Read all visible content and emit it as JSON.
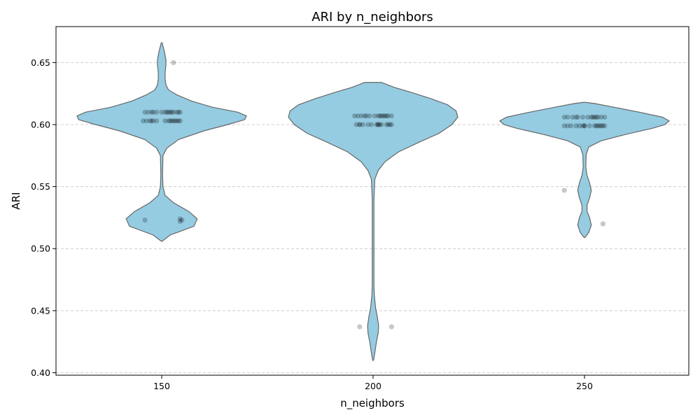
{
  "chart_data": {
    "type": "violin",
    "title": "ARI by n_neighbors",
    "xlabel": "n_neighbors",
    "ylabel": "ARI",
    "categories": [
      "150",
      "200",
      "250"
    ],
    "ylim": [
      0.398,
      0.679
    ],
    "yticks": [
      0.4,
      0.45,
      0.5,
      0.55,
      0.6,
      0.65
    ],
    "grid": "y-dashed",
    "colors": {
      "violin": "#89c6df",
      "edge": "#666666",
      "points": "#000000"
    },
    "groups": [
      {
        "category": "150",
        "profile": [
          [
            0.506,
            0.0
          ],
          [
            0.511,
            0.1
          ],
          [
            0.518,
            0.38
          ],
          [
            0.524,
            0.42
          ],
          [
            0.53,
            0.32
          ],
          [
            0.537,
            0.14
          ],
          [
            0.543,
            0.04
          ],
          [
            0.55,
            0.015
          ],
          [
            0.56,
            0.01
          ],
          [
            0.575,
            0.015
          ],
          [
            0.581,
            0.06
          ],
          [
            0.588,
            0.2
          ],
          [
            0.595,
            0.5
          ],
          [
            0.6,
            0.78
          ],
          [
            0.604,
            0.98
          ],
          [
            0.607,
            1.0
          ],
          [
            0.61,
            0.9
          ],
          [
            0.614,
            0.6
          ],
          [
            0.619,
            0.35
          ],
          [
            0.624,
            0.18
          ],
          [
            0.628,
            0.08
          ],
          [
            0.632,
            0.05
          ],
          [
            0.637,
            0.04
          ],
          [
            0.642,
            0.04
          ],
          [
            0.648,
            0.05
          ],
          [
            0.652,
            0.05
          ],
          [
            0.658,
            0.035
          ],
          [
            0.662,
            0.02
          ],
          [
            0.666,
            0.0
          ]
        ],
        "points": [
          [
            -0.1,
            0.61
          ],
          [
            -0.08,
            0.61
          ],
          [
            -0.06,
            0.61
          ],
          [
            -0.03,
            0.61
          ],
          [
            0.0,
            0.61
          ],
          [
            0.02,
            0.61
          ],
          [
            0.04,
            0.61
          ],
          [
            0.07,
            0.61
          ],
          [
            0.09,
            0.61
          ],
          [
            0.1,
            0.61
          ],
          [
            0.11,
            0.61
          ],
          [
            0.06,
            0.61
          ],
          [
            -0.05,
            0.61
          ],
          [
            0.03,
            0.61
          ],
          [
            0.05,
            0.61
          ],
          [
            -0.11,
            0.603
          ],
          [
            -0.09,
            0.603
          ],
          [
            -0.07,
            0.603
          ],
          [
            -0.05,
            0.603
          ],
          [
            -0.03,
            0.603
          ],
          [
            0.02,
            0.603
          ],
          [
            0.05,
            0.603
          ],
          [
            0.07,
            0.603
          ],
          [
            0.08,
            0.603
          ],
          [
            0.09,
            0.603
          ],
          [
            0.11,
            0.603
          ],
          [
            -0.06,
            0.603
          ],
          [
            0.04,
            0.603
          ],
          [
            0.1,
            0.603
          ],
          [
            0.06,
            0.603
          ],
          [
            0.07,
            0.65
          ],
          [
            -0.1,
            0.523
          ],
          [
            0.11,
            0.524
          ],
          [
            0.12,
            0.523
          ],
          [
            0.11,
            0.522
          ]
        ]
      },
      {
        "category": "200",
        "profile": [
          [
            0.41,
            0.0
          ],
          [
            0.416,
            0.02
          ],
          [
            0.425,
            0.04
          ],
          [
            0.432,
            0.06
          ],
          [
            0.438,
            0.065
          ],
          [
            0.445,
            0.05
          ],
          [
            0.452,
            0.03
          ],
          [
            0.462,
            0.015
          ],
          [
            0.47,
            0.01
          ],
          [
            0.5,
            0.01
          ],
          [
            0.54,
            0.01
          ],
          [
            0.556,
            0.02
          ],
          [
            0.563,
            0.06
          ],
          [
            0.57,
            0.14
          ],
          [
            0.578,
            0.3
          ],
          [
            0.586,
            0.55
          ],
          [
            0.593,
            0.78
          ],
          [
            0.6,
            0.93
          ],
          [
            0.606,
            1.0
          ],
          [
            0.611,
            0.98
          ],
          [
            0.616,
            0.88
          ],
          [
            0.621,
            0.68
          ],
          [
            0.626,
            0.45
          ],
          [
            0.63,
            0.25
          ],
          [
            0.634,
            0.1
          ]
        ],
        "points": [
          [
            -0.11,
            0.607
          ],
          [
            -0.09,
            0.607
          ],
          [
            -0.07,
            0.607
          ],
          [
            -0.05,
            0.607
          ],
          [
            -0.02,
            0.607
          ],
          [
            0.01,
            0.607
          ],
          [
            0.03,
            0.607
          ],
          [
            0.05,
            0.607
          ],
          [
            0.07,
            0.607
          ],
          [
            0.09,
            0.607
          ],
          [
            0.11,
            0.607
          ],
          [
            0.06,
            0.607
          ],
          [
            0.08,
            0.607
          ],
          [
            -0.04,
            0.607
          ],
          [
            0.04,
            0.607
          ],
          [
            -0.1,
            0.6
          ],
          [
            -0.08,
            0.6
          ],
          [
            -0.06,
            0.6
          ],
          [
            -0.03,
            0.6
          ],
          [
            -0.01,
            0.6
          ],
          [
            0.02,
            0.6
          ],
          [
            0.03,
            0.6
          ],
          [
            0.05,
            0.6
          ],
          [
            0.08,
            0.6
          ],
          [
            0.1,
            0.6
          ],
          [
            0.11,
            0.6
          ],
          [
            -0.08,
            0.6
          ],
          [
            0.03,
            0.6
          ],
          [
            0.04,
            0.6
          ],
          [
            0.09,
            0.6
          ],
          [
            -0.08,
            0.437
          ],
          [
            0.11,
            0.437
          ]
        ]
      },
      {
        "category": "250",
        "profile": [
          [
            0.509,
            0.0
          ],
          [
            0.513,
            0.05
          ],
          [
            0.519,
            0.08
          ],
          [
            0.525,
            0.06
          ],
          [
            0.53,
            0.03
          ],
          [
            0.535,
            0.03
          ],
          [
            0.541,
            0.06
          ],
          [
            0.547,
            0.08
          ],
          [
            0.553,
            0.06
          ],
          [
            0.559,
            0.03
          ],
          [
            0.566,
            0.015
          ],
          [
            0.576,
            0.02
          ],
          [
            0.582,
            0.05
          ],
          [
            0.587,
            0.2
          ],
          [
            0.592,
            0.48
          ],
          [
            0.597,
            0.8
          ],
          [
            0.6,
            0.95
          ],
          [
            0.603,
            1.0
          ],
          [
            0.606,
            0.92
          ],
          [
            0.61,
            0.65
          ],
          [
            0.614,
            0.35
          ],
          [
            0.617,
            0.12
          ],
          [
            0.618,
            0.0
          ]
        ],
        "points": [
          [
            -0.12,
            0.606
          ],
          [
            -0.1,
            0.606
          ],
          [
            -0.07,
            0.606
          ],
          [
            -0.04,
            0.606
          ],
          [
            -0.01,
            0.606
          ],
          [
            0.02,
            0.606
          ],
          [
            0.04,
            0.606
          ],
          [
            0.06,
            0.606
          ],
          [
            0.08,
            0.606
          ],
          [
            0.1,
            0.606
          ],
          [
            0.12,
            0.606
          ],
          [
            -0.05,
            0.606
          ],
          [
            0.05,
            0.606
          ],
          [
            0.07,
            0.606
          ],
          [
            -0.12,
            0.599
          ],
          [
            -0.1,
            0.599
          ],
          [
            -0.08,
            0.599
          ],
          [
            -0.05,
            0.599
          ],
          [
            -0.03,
            0.599
          ],
          [
            -0.01,
            0.599
          ],
          [
            0.0,
            0.599
          ],
          [
            0.03,
            0.599
          ],
          [
            0.06,
            0.599
          ],
          [
            0.08,
            0.599
          ],
          [
            0.1,
            0.599
          ],
          [
            0.12,
            0.599
          ],
          [
            0.07,
            0.599
          ],
          [
            0.09,
            0.599
          ],
          [
            0.11,
            0.599
          ],
          [
            0.0,
            0.599
          ],
          [
            -0.12,
            0.547
          ],
          [
            0.11,
            0.52
          ]
        ]
      }
    ]
  }
}
